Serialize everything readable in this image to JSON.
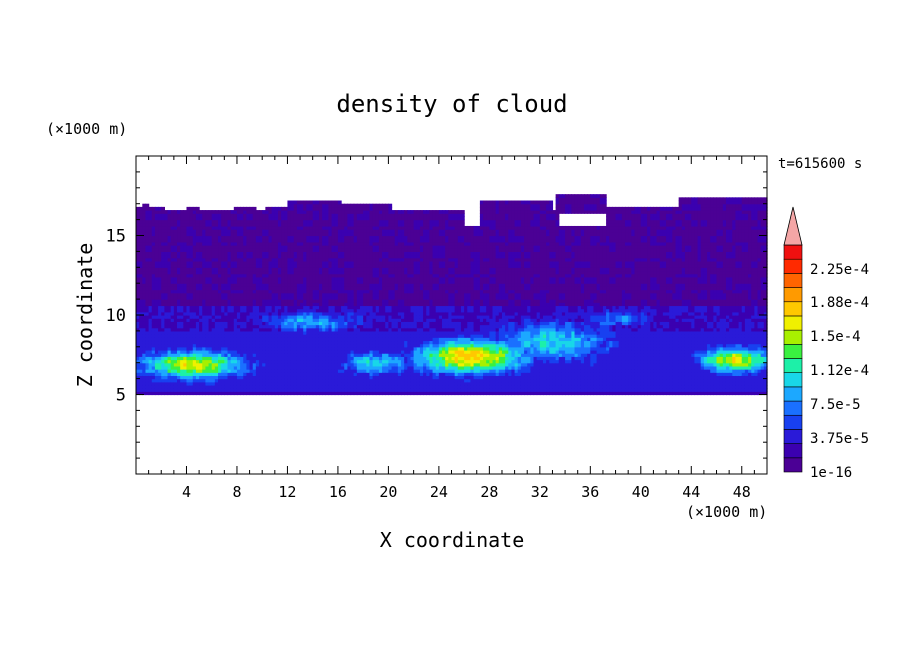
{
  "chart_data": {
    "type": "heatmap",
    "title": "density of cloud",
    "time_label": "t=615600 s",
    "xlabel": "X coordinate",
    "ylabel": "Z coordinate",
    "x_unit": "(×1000 m)",
    "y_unit": "(×1000 m)",
    "xlim": [
      0,
      50
    ],
    "ylim": [
      0,
      20
    ],
    "xticks": [
      4,
      8,
      12,
      16,
      20,
      24,
      28,
      32,
      36,
      40,
      44,
      48
    ],
    "yticks": [
      5,
      10,
      15
    ],
    "colorbar": {
      "ticks": [
        "1e-16",
        "3.75e-5",
        "7.5e-5",
        "1.12e-4",
        "1.5e-4",
        "1.88e-4",
        "2.25e-4"
      ],
      "levels": [
        "#4B0095",
        "#3B00B0",
        "#2A1AD8",
        "#1840F0",
        "#1A70FF",
        "#1CA8FF",
        "#19D7E8",
        "#1DF0A8",
        "#3AF040",
        "#A8F000",
        "#F0F000",
        "#FFC800",
        "#FF9A00",
        "#FF6400",
        "#FF2A00",
        "#F01010"
      ],
      "extend_color": "#F4A6A6"
    },
    "field_summary": {
      "cloud_base_km": 5.0,
      "cloud_top_km": 17.0,
      "max_density_region": "x 22-30 km, z 6.5-8.5 km"
    }
  }
}
